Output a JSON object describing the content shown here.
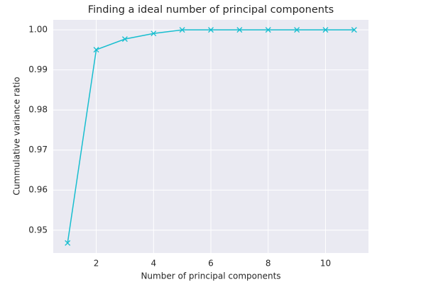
{
  "chart_data": {
    "type": "line",
    "title": "Finding a ideal number of principal components",
    "x_label": "Number of principal components",
    "y_label": "Cummulative variance ratio",
    "x": [
      1,
      2,
      3,
      4,
      5,
      6,
      7,
      8,
      9,
      10,
      11
    ],
    "series": [
      {
        "name": "Cummulative variance ratio",
        "color": "#17becf",
        "marker": "x",
        "values": [
          0.9468,
          0.99505,
          0.9977,
          0.9991,
          1.0,
          1.0,
          1.0,
          1.0,
          1.0,
          1.0,
          1.0
        ]
      }
    ],
    "xlim": [
      0.5,
      11.5
    ],
    "xticks": [
      2,
      4,
      6,
      8,
      10
    ],
    "ylim": [
      0.9443,
      1.0025
    ],
    "yticks": [
      0.95,
      0.96,
      0.97,
      0.98,
      0.99,
      {
        "value": 1,
        "label": "1.00"
      }
    ],
    "grid": true
  }
}
